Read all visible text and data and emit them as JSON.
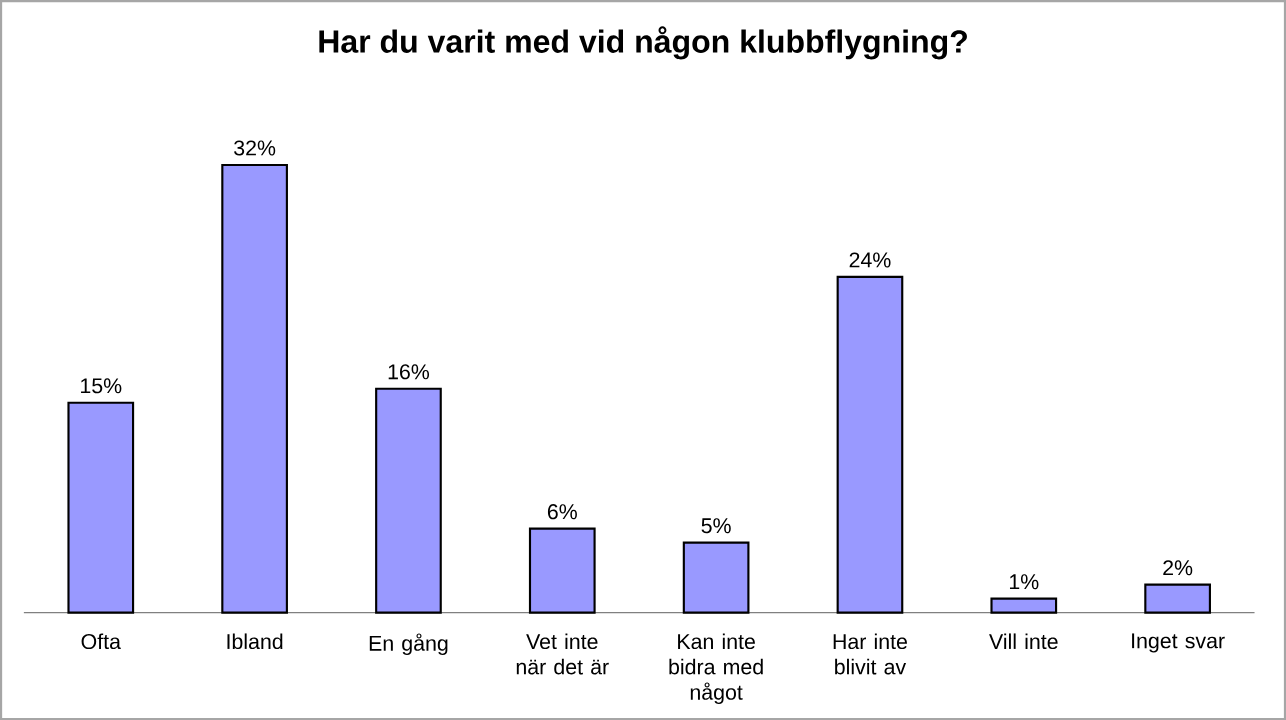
{
  "chart_data": {
    "type": "bar",
    "title": "Har du varit med vid någon klubbflygning?",
    "categories": [
      "Ofta",
      "Ibland",
      "En gång",
      "Vet inte när det är",
      "Kan inte bidra med något",
      "Har inte blivit av",
      "Vill inte",
      "Inget svar"
    ],
    "values": [
      15,
      32,
      16,
      6,
      5,
      24,
      1,
      2
    ],
    "value_labels": [
      "15%",
      "32%",
      "16%",
      "6%",
      "5%",
      "24%",
      "1%",
      "2%"
    ],
    "color": "#9999ff"
  }
}
